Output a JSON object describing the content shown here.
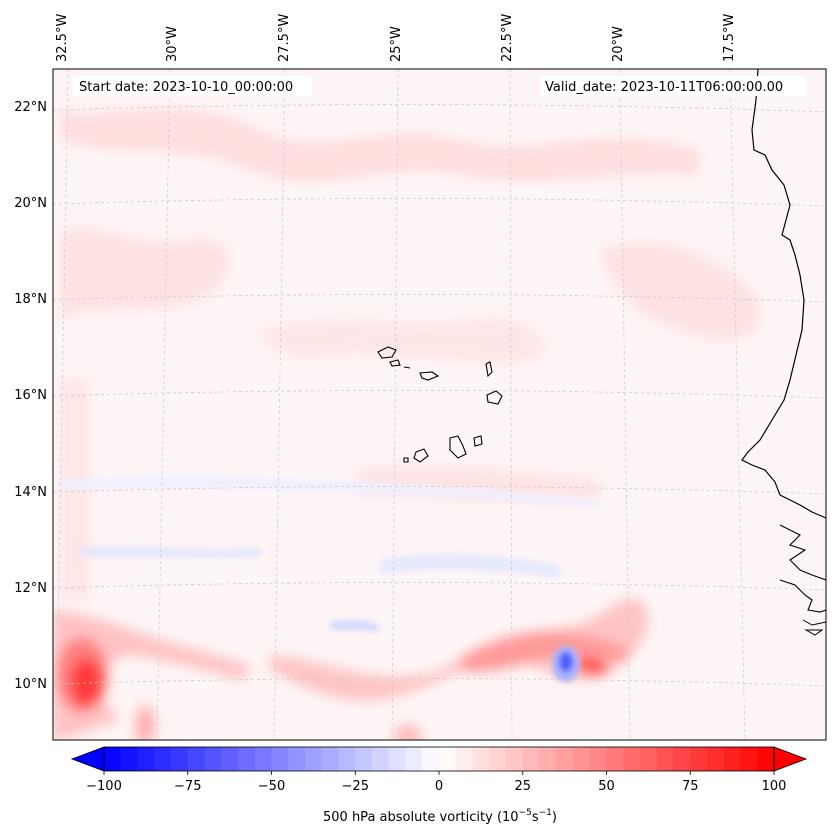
{
  "header": {
    "start_date": "Start date: 2023-10-10_00:00:00",
    "valid_date": "Valid_date: 2023-10-11T06:00:00.00"
  },
  "axes": {
    "lon_labels": [
      "32.5°W",
      "30°W",
      "27.5°W",
      "25°W",
      "22.5°W",
      "20°W",
      "17.5°W"
    ],
    "lat_labels": [
      "22°N",
      "20°N",
      "18°N",
      "16°N",
      "14°N",
      "12°N",
      "10°N"
    ]
  },
  "colorbar": {
    "ticks": [
      "−100",
      "−75",
      "−50",
      "−25",
      "0",
      "25",
      "50",
      "75",
      "100"
    ],
    "tick_values": [
      -100,
      -75,
      -50,
      -25,
      0,
      25,
      50,
      75,
      100
    ],
    "label": "500 hPa absolute vorticity (10",
    "label_exp1": "−5",
    "label_mid": "s",
    "label_exp2": "−1",
    "label_end": ")",
    "vmin": -100,
    "vmax": 100,
    "color_low": "#0000ff",
    "color_mid": "#ffffff",
    "color_high": "#ff0000"
  },
  "map_features": {
    "islands": "Cape Verde Islands",
    "coast": "West African coast (Senegal / Guinea-Bissau)"
  }
}
